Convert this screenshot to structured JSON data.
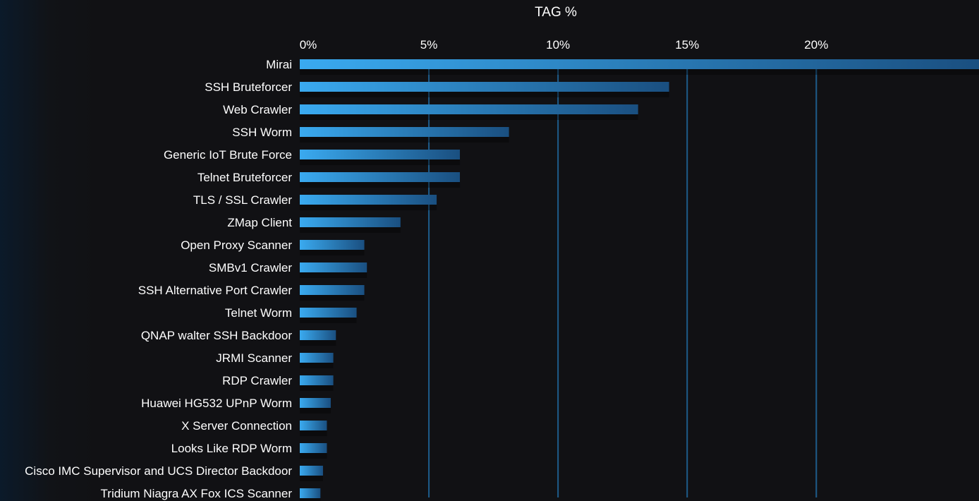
{
  "chart_data": {
    "type": "bar",
    "orientation": "horizontal",
    "title": "TAG %",
    "xlim": [
      0,
      26.3
    ],
    "x_ticks": [
      0,
      5,
      10,
      15,
      20
    ],
    "x_tick_labels": [
      "0%",
      "5%",
      "10%",
      "15%",
      "20%"
    ],
    "grid": true,
    "categories": [
      "Mirai",
      "SSH Bruteforcer",
      "Web Crawler",
      "SSH Worm",
      "Generic IoT Brute Force",
      "Telnet Bruteforcer",
      "TLS / SSL Crawler",
      "ZMap Client",
      "Open Proxy Scanner",
      "SMBv1 Crawler",
      "SSH Alternative Port Crawler",
      "Telnet Worm",
      "QNAP walter SSH Backdoor",
      "JRMI Scanner",
      "RDP Crawler",
      "Huawei HG532 UPnP Worm",
      "X Server Connection",
      "Looks Like RDP Worm",
      "Cisco IMC Supervisor and UCS Director Backdoor",
      "Tridium Niagra AX Fox ICS Scanner"
    ],
    "values": [
      27.5,
      14.3,
      13.1,
      8.1,
      6.2,
      6.2,
      5.3,
      3.9,
      2.5,
      2.6,
      2.5,
      2.2,
      1.4,
      1.3,
      1.3,
      1.2,
      1.05,
      1.05,
      0.9,
      0.8
    ],
    "colors": {
      "bar_start": "#3aaaf0",
      "bar_end": "#1a4f80",
      "grid": "#1e5d8c",
      "background": "#111114"
    }
  }
}
